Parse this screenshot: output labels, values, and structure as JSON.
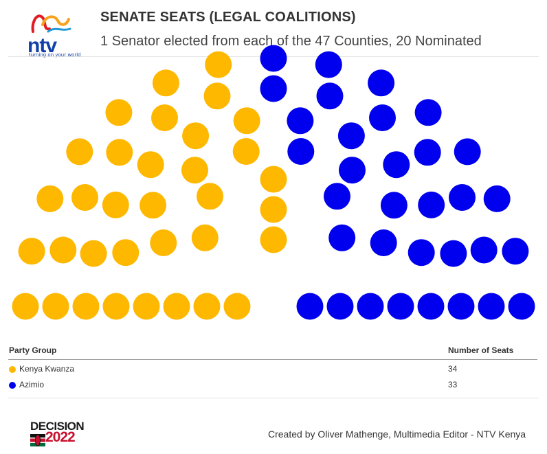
{
  "brand": {
    "logo_text": "ntv",
    "tagline": "turning on your world",
    "badge_line1": "DECISION",
    "badge_line2": "2022"
  },
  "title": "SENATE SEATS (LEGAL COALITIONS)",
  "subtitle": "1 Senator elected from each of the 47 Counties, 20 Nominated",
  "chart_data": {
    "type": "parliament",
    "title": "SENATE SEATS (LEGAL COALITIONS)",
    "subtitle": "1 Senator elected from each of the 47 Counties, 20 Nominated",
    "total_seats": 67,
    "series": [
      {
        "name": "Kenya Kwanza",
        "seats": 34,
        "color": "#FFB800"
      },
      {
        "name": "Azimio",
        "seats": 33,
        "color": "#0000EE"
      }
    ]
  },
  "legend": {
    "header_group": "Party Group",
    "header_seats": "Number of Seats",
    "rows": [
      {
        "name": "Kenya Kwanza",
        "seats": "34",
        "color": "#FFB800"
      },
      {
        "name": "Azimio",
        "seats": "33",
        "color": "#0000EE"
      }
    ]
  },
  "credit": "Created by Oliver Mathenge, Multimedia Editor - NTV Kenya"
}
